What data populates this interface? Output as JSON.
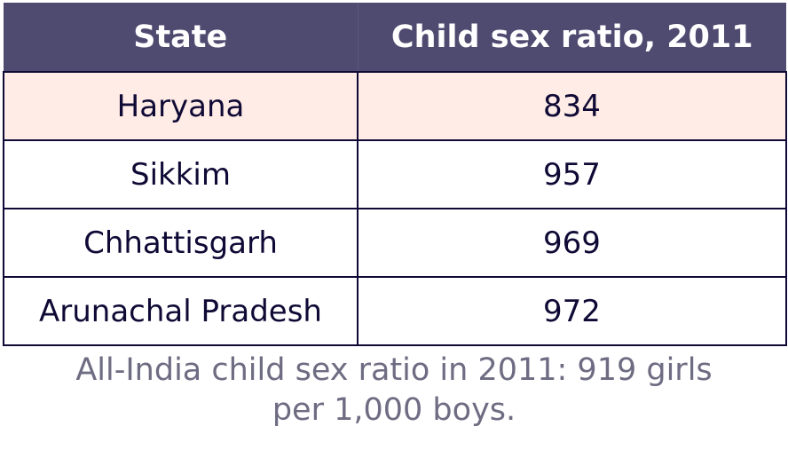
{
  "table": {
    "headers": [
      "State",
      "Child sex ratio, 2011"
    ],
    "rows": [
      {
        "state": "Haryana",
        "ratio": "834",
        "highlighted": true
      },
      {
        "state": "Sikkim",
        "ratio": "957",
        "highlighted": false
      },
      {
        "state": "Chhattisgarh",
        "ratio": "969",
        "highlighted": false
      },
      {
        "state": "Arunachal Pradesh",
        "ratio": "972",
        "highlighted": false
      }
    ]
  },
  "caption": {
    "line1": "All-India child sex ratio in 2011: 919 girls",
    "line2": "per 1,000 boys."
  },
  "colors": {
    "header_bg": "#4f4a70",
    "header_text": "#ffffff",
    "cell_text": "#0f0a35",
    "highlight_bg": "#ffece6",
    "caption_text": "#6e6c82"
  }
}
